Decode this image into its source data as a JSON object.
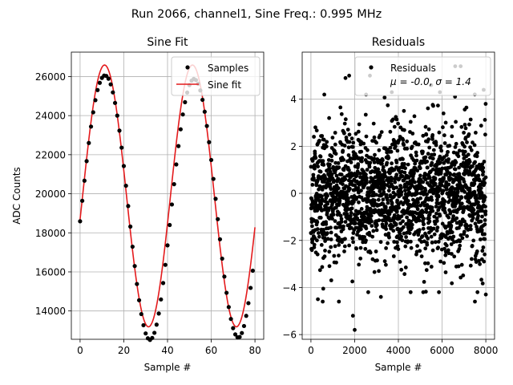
{
  "figure": {
    "suptitle": "Run 2066, channel1, Sine Freq.: 0.995 MHz"
  },
  "chart_data": [
    {
      "type": "scatter",
      "title": "Sine Fit",
      "xlabel": "Sample #",
      "ylabel": "ADC Counts",
      "xlim": [
        -4,
        84
      ],
      "ylim": [
        12550,
        27250
      ],
      "xticks": [
        0,
        20,
        40,
        60,
        80
      ],
      "xtick_labels": [
        "0",
        "20",
        "40",
        "60",
        "80"
      ],
      "yticks": [
        14000,
        16000,
        18000,
        20000,
        22000,
        24000,
        26000
      ],
      "ytick_labels": [
        "14000",
        "16000",
        "18000",
        "20000",
        "22000",
        "24000",
        "26000"
      ],
      "grid": true,
      "legend": {
        "position": "top-right",
        "entries": [
          "Samples",
          "Sine fit"
        ]
      },
      "fit": {
        "offset": 19890,
        "amplitude": 6700,
        "period": 40.2,
        "phase_sample": 11.2
      },
      "series": [
        {
          "name": "Samples",
          "kind": "scatter",
          "color": "#000000",
          "x": [
            0,
            1,
            2,
            3,
            4,
            5,
            6,
            7,
            8,
            9,
            10,
            11,
            12,
            13,
            14,
            15,
            16,
            17,
            18,
            19,
            20,
            21,
            22,
            23,
            24,
            25,
            26,
            27,
            28,
            29,
            30,
            31,
            32,
            33,
            34,
            35,
            36,
            37,
            38,
            39,
            40,
            41,
            42,
            43,
            44,
            45,
            46,
            47,
            48,
            49,
            50,
            51,
            52,
            53,
            54,
            55,
            56,
            57,
            58,
            59,
            60,
            61,
            62,
            63,
            64,
            65,
            66,
            67,
            68,
            69,
            70,
            71,
            72,
            73,
            74,
            75,
            76,
            77,
            78,
            79
          ],
          "y": [
            18590,
            19640,
            20670,
            21670,
            22600,
            23440,
            24170,
            24790,
            25310,
            25680,
            25930,
            26050,
            26030,
            25890,
            25600,
            25190,
            24650,
            24000,
            23230,
            22360,
            21420,
            20410,
            19370,
            18320,
            17290,
            16300,
            15380,
            14550,
            13840,
            13270,
            12850,
            12600,
            12520,
            12620,
            12880,
            13300,
            13870,
            14590,
            15430,
            16360,
            17360,
            18400,
            19450,
            20490,
            21500,
            22440,
            23300,
            24060,
            24690,
            25180,
            25560,
            25790,
            25880,
            25820,
            25630,
            25290,
            24810,
            24200,
            23470,
            22640,
            21730,
            20760,
            19740,
            18700,
            17670,
            16680,
            15760,
            14930,
            14200,
            13590,
            13120,
            12800,
            12650,
            12670,
            12870,
            13230,
            13750,
            14400,
            15180,
            16060
          ]
        },
        {
          "name": "Sine fit",
          "kind": "line",
          "color": "#e41a1c"
        }
      ]
    },
    {
      "type": "scatter",
      "title": "Residuals",
      "xlabel": "Sample #",
      "ylabel": "",
      "xlim": [
        -400,
        8400
      ],
      "ylim": [
        -6.2,
        6.0
      ],
      "xticks": [
        0,
        2000,
        4000,
        6000,
        8000
      ],
      "xtick_labels": [
        "0",
        "2000",
        "4000",
        "6000",
        "8000"
      ],
      "yticks": [
        -6,
        -4,
        -2,
        0,
        2,
        4
      ],
      "ytick_labels": [
        "−6",
        "−4",
        "−2",
        "0",
        "2",
        "4"
      ],
      "grid": true,
      "legend": {
        "position": "top-right",
        "entries": [
          "Residuals",
          "μ = -0.0, σ = 1.4"
        ]
      },
      "stats": {
        "mean": -0.0,
        "sigma": 1.4,
        "n_samples": 8000
      },
      "series": [
        {
          "name": "Residuals",
          "kind": "scatter",
          "color": "#000000",
          "outliers": [
            {
              "x": 2000,
              "y": -5.8
            },
            {
              "x": 1920,
              "y": -5.2
            },
            {
              "x": 1580,
              "y": 4.9
            },
            {
              "x": 1750,
              "y": 5.0
            },
            {
              "x": 2700,
              "y": 5.0
            },
            {
              "x": 6600,
              "y": 5.4
            },
            {
              "x": 6850,
              "y": 5.4
            },
            {
              "x": 5500,
              "y": 4.6
            },
            {
              "x": 320,
              "y": -4.5
            },
            {
              "x": 540,
              "y": -4.6
            },
            {
              "x": 1280,
              "y": -4.6
            },
            {
              "x": 4560,
              "y": -4.2
            },
            {
              "x": 7500,
              "y": -4.6
            },
            {
              "x": 8000,
              "y": -4.3
            },
            {
              "x": 2620,
              "y": -4.2
            },
            {
              "x": 3200,
              "y": -4.4
            },
            {
              "x": 5900,
              "y": 4.3
            },
            {
              "x": 3700,
              "y": 4.3
            },
            {
              "x": 7900,
              "y": 4.4
            }
          ]
        }
      ]
    }
  ]
}
